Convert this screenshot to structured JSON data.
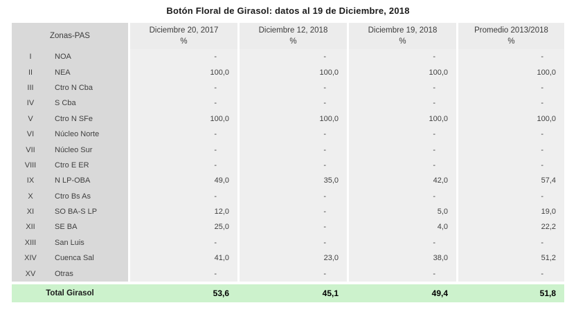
{
  "title": "Botón Floral de Girasol: datos al 19 de Diciembre, 2018",
  "colors": {
    "zone_column_bg": "#d9d9d9",
    "data_column_bg": "#efefef",
    "header_bg": "#ececec",
    "total_row_bg": "#ccf2cc",
    "text": "#3f3f3f"
  },
  "table": {
    "zone_header": "Zonas-PAS",
    "col_headers": [
      {
        "title": "Diciembre 20, 2017",
        "unit": "%"
      },
      {
        "title": "Diciembre 12, 2018",
        "unit": "%"
      },
      {
        "title": "Diciembre 19, 2018",
        "unit": "%"
      },
      {
        "title": "Promedio 2013/2018",
        "unit": "%"
      }
    ],
    "rows": [
      {
        "num": "I",
        "name": "NOA",
        "values": [
          "-",
          "-",
          "-",
          "-"
        ]
      },
      {
        "num": "II",
        "name": "NEA",
        "values": [
          "100,0",
          "100,0",
          "100,0",
          "100,0"
        ]
      },
      {
        "num": "III",
        "name": "Ctro N Cba",
        "values": [
          "-",
          "-",
          "-",
          "-"
        ]
      },
      {
        "num": "IV",
        "name": "S Cba",
        "values": [
          "-",
          "-",
          "-",
          "-"
        ]
      },
      {
        "num": "V",
        "name": "Ctro N SFe",
        "values": [
          "100,0",
          "100,0",
          "100,0",
          "100,0"
        ]
      },
      {
        "num": "VI",
        "name": "Núcleo Norte",
        "values": [
          "-",
          "-",
          "-",
          "-"
        ]
      },
      {
        "num": "VII",
        "name": "Núcleo Sur",
        "values": [
          "-",
          "-",
          "-",
          "-"
        ]
      },
      {
        "num": "VIII",
        "name": "Ctro E ER",
        "values": [
          "-",
          "-",
          "-",
          "-"
        ]
      },
      {
        "num": "IX",
        "name": "N LP-OBA",
        "values": [
          "49,0",
          "35,0",
          "42,0",
          "57,4"
        ]
      },
      {
        "num": "X",
        "name": "Ctro Bs As",
        "values": [
          "-",
          "-",
          "-",
          "-"
        ]
      },
      {
        "num": "XI",
        "name": "SO BA-S LP",
        "values": [
          "12,0",
          "-",
          "5,0",
          "19,0"
        ]
      },
      {
        "num": "XII",
        "name": "SE BA",
        "values": [
          "25,0",
          "-",
          "4,0",
          "22,2"
        ]
      },
      {
        "num": "XIII",
        "name": "San Luis",
        "values": [
          "-",
          "-",
          "-",
          "-"
        ]
      },
      {
        "num": "XIV",
        "name": "Cuenca Sal",
        "values": [
          "41,0",
          "23,0",
          "38,0",
          "51,2"
        ]
      },
      {
        "num": "XV",
        "name": "Otras",
        "values": [
          "-",
          "-",
          "-",
          "-"
        ]
      }
    ],
    "total": {
      "label": "Total Girasol",
      "values": [
        "53,6",
        "45,1",
        "49,4",
        "51,8"
      ]
    }
  },
  "chart_data": {
    "type": "table",
    "title": "Botón Floral de Girasol: datos al 19 de Diciembre, 2018",
    "columns": [
      "Zonas-PAS",
      "Diciembre 20, 2017 %",
      "Diciembre 12, 2018 %",
      "Diciembre 19, 2018 %",
      "Promedio 2013/2018 %"
    ],
    "categories": [
      "I NOA",
      "II NEA",
      "III Ctro N Cba",
      "IV S Cba",
      "V Ctro N SFe",
      "VI Núcleo Norte",
      "VII Núcleo Sur",
      "VIII Ctro E ER",
      "IX N LP-OBA",
      "X Ctro Bs As",
      "XI SO BA-S LP",
      "XII SE BA",
      "XIII San Luis",
      "XIV Cuenca Sal",
      "XV Otras",
      "Total Girasol"
    ],
    "series": [
      {
        "name": "Diciembre 20, 2017 %",
        "values": [
          null,
          100.0,
          null,
          null,
          100.0,
          null,
          null,
          null,
          49.0,
          null,
          12.0,
          25.0,
          null,
          41.0,
          null,
          53.6
        ]
      },
      {
        "name": "Diciembre 12, 2018 %",
        "values": [
          null,
          100.0,
          null,
          null,
          100.0,
          null,
          null,
          null,
          35.0,
          null,
          null,
          null,
          null,
          23.0,
          null,
          45.1
        ]
      },
      {
        "name": "Diciembre 19, 2018 %",
        "values": [
          null,
          100.0,
          null,
          null,
          100.0,
          null,
          null,
          null,
          42.0,
          null,
          5.0,
          4.0,
          null,
          38.0,
          null,
          49.4
        ]
      },
      {
        "name": "Promedio 2013/2018 %",
        "values": [
          null,
          100.0,
          null,
          null,
          100.0,
          null,
          null,
          null,
          57.4,
          null,
          19.0,
          22.2,
          null,
          51.2,
          null,
          51.8
        ]
      }
    ],
    "note": "Dashes (-) in the screenshot indicate no data; decimal comma formatting (e.g. 100,0)."
  }
}
